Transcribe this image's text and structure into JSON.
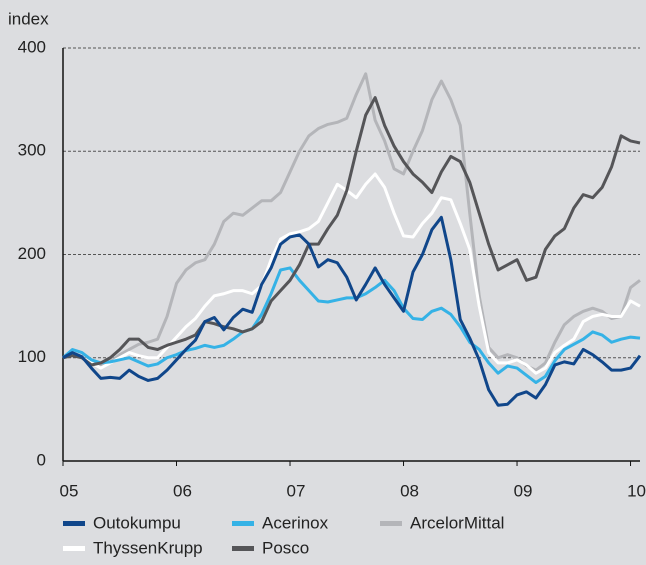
{
  "chart_data": {
    "type": "line",
    "y_label": "index",
    "x": [
      0,
      1,
      2,
      3,
      4,
      5,
      6,
      7,
      8,
      9,
      10,
      11,
      12,
      13,
      14,
      15,
      16,
      17,
      18,
      19,
      20,
      21,
      22,
      23,
      24,
      25,
      26,
      27,
      28,
      29,
      30,
      31,
      32,
      33,
      34,
      35,
      36,
      37,
      38,
      39,
      40,
      41,
      42,
      43,
      44,
      45,
      46,
      47,
      48,
      49,
      50,
      51,
      52,
      53,
      54,
      55,
      56,
      57,
      58,
      59,
      60,
      61
    ],
    "xlim": [
      0,
      61
    ],
    "xticks": [
      {
        "value": 0,
        "label": "05"
      },
      {
        "value": 12,
        "label": "06"
      },
      {
        "value": 24,
        "label": "07"
      },
      {
        "value": 36,
        "label": "08"
      },
      {
        "value": 48,
        "label": "09"
      },
      {
        "value": 60,
        "label": "10"
      }
    ],
    "ylim": [
      0,
      400
    ],
    "yticks": [
      0,
      100,
      200,
      300,
      400
    ],
    "grid": true,
    "series": [
      {
        "name": "Outokumpu",
        "color": "#10468a",
        "values": [
          100,
          105,
          101,
          90,
          80,
          81,
          80,
          88,
          82,
          78,
          80,
          88,
          98,
          108,
          117,
          135,
          139,
          127,
          139,
          147,
          144,
          171,
          187,
          210,
          217,
          219,
          210,
          188,
          195,
          192,
          178,
          156,
          171,
          187,
          171,
          158,
          145,
          183,
          200,
          224,
          236,
          195,
          137,
          119,
          98,
          69,
          54,
          55,
          64,
          67,
          61,
          74,
          93,
          96,
          94,
          108,
          103,
          96,
          88,
          88,
          90,
          102
        ]
      },
      {
        "name": "Acerinox",
        "color": "#35b2e6",
        "values": [
          100,
          108,
          105,
          98,
          95,
          96,
          98,
          100,
          96,
          92,
          94,
          100,
          103,
          107,
          109,
          112,
          110,
          112,
          118,
          125,
          128,
          142,
          162,
          185,
          187,
          175,
          165,
          155,
          154,
          156,
          158,
          158,
          162,
          168,
          175,
          165,
          148,
          138,
          137,
          145,
          148,
          142,
          130,
          115,
          108,
          95,
          85,
          92,
          90,
          83,
          76,
          82,
          97,
          108,
          113,
          118,
          125,
          122,
          115,
          118,
          120,
          119
        ]
      },
      {
        "name": "ArcelorMittal",
        "color": "#b4b5b9",
        "values": [
          100,
          103,
          100,
          96,
          93,
          96,
          103,
          108,
          113,
          115,
          118,
          140,
          172,
          185,
          192,
          195,
          210,
          232,
          240,
          238,
          245,
          252,
          252,
          260,
          280,
          300,
          315,
          322,
          326,
          328,
          332,
          355,
          375,
          330,
          310,
          283,
          278,
          300,
          320,
          350,
          368,
          350,
          325,
          240,
          160,
          110,
          100,
          103,
          100,
          92,
          88,
          95,
          115,
          132,
          140,
          145,
          148,
          145,
          138,
          140,
          168,
          175
        ]
      },
      {
        "name": "ThyssenKrupp",
        "color": "#ffffff",
        "values": [
          100,
          105,
          100,
          95,
          90,
          95,
          100,
          105,
          102,
          100,
          100,
          110,
          120,
          130,
          138,
          150,
          160,
          162,
          165,
          165,
          162,
          170,
          195,
          215,
          220,
          222,
          225,
          232,
          250,
          268,
          262,
          255,
          268,
          278,
          265,
          240,
          218,
          217,
          230,
          240,
          255,
          253,
          230,
          205,
          150,
          105,
          95,
          95,
          98,
          93,
          85,
          90,
          105,
          112,
          118,
          135,
          140,
          142,
          140,
          140,
          155,
          150
        ]
      },
      {
        "name": "Posco",
        "color": "#555558",
        "values": [
          100,
          102,
          100,
          93,
          95,
          100,
          108,
          118,
          118,
          110,
          108,
          112,
          115,
          118,
          122,
          135,
          133,
          130,
          128,
          125,
          128,
          135,
          155,
          165,
          175,
          190,
          210,
          210,
          225,
          238,
          262,
          300,
          335,
          352,
          325,
          305,
          290,
          278,
          270,
          260,
          280,
          295,
          290,
          270,
          240,
          210,
          185,
          190,
          195,
          175,
          178,
          205,
          218,
          225,
          245,
          258,
          255,
          265,
          285,
          315,
          310,
          308
        ]
      }
    ]
  }
}
